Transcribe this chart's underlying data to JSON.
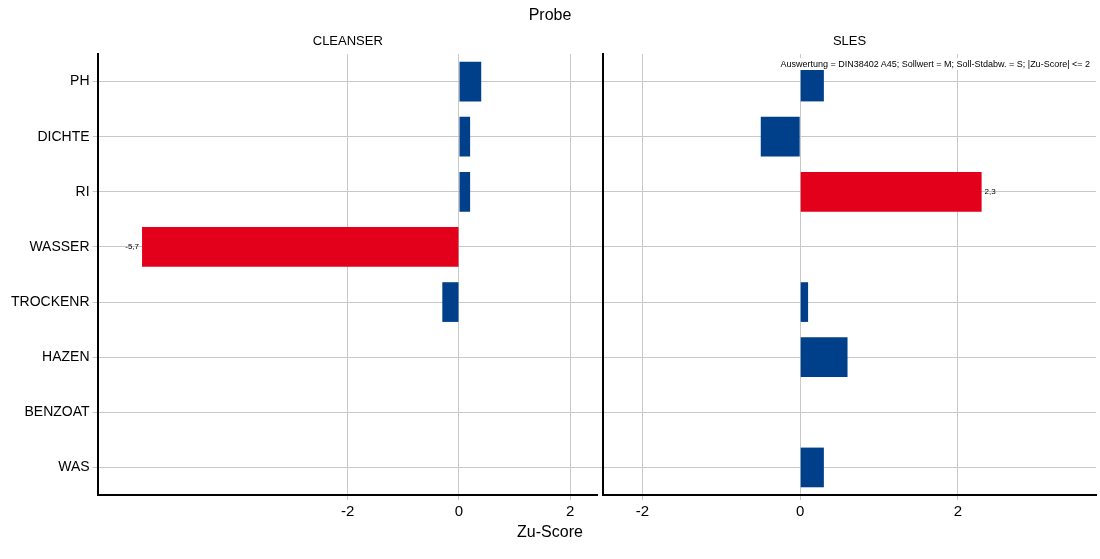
{
  "chart_data": [
    {
      "type": "bar",
      "orientation": "horizontal",
      "title": "Probe",
      "subtitle": "CLEANSER",
      "xlabel": "Zu-Score",
      "categories": [
        "PH",
        "DICHTE",
        "RI",
        "WASSER",
        "TROCKENR",
        "HAZEN",
        "BENZOAT",
        "WAS"
      ],
      "values": [
        0.4,
        0.2,
        0.2,
        -5.7,
        -0.3,
        null,
        0,
        null
      ],
      "colors": [
        "#003f8a",
        "#003f8a",
        "#003f8a",
        "#e2001a",
        "#003f8a",
        "#003f8a",
        "#003f8a",
        "#003f8a"
      ],
      "value_labels": [
        null,
        null,
        null,
        "-5,7",
        null,
        null,
        null,
        null
      ],
      "xlim": [
        -6.5,
        2.5
      ],
      "xticks": [
        -2,
        0,
        2
      ],
      "grid": true,
      "legend": false
    },
    {
      "type": "bar",
      "orientation": "horizontal",
      "subtitle": "SLES",
      "categories": [
        null,
        null,
        null,
        null,
        null,
        null,
        null,
        null
      ],
      "values": [
        0.3,
        -0.5,
        2.3,
        null,
        0.1,
        0.6,
        null,
        0.3
      ],
      "colors": [
        "#003f8a",
        "#003f8a",
        "#e2001a",
        "#003f8a",
        "#003f8a",
        "#003f8a",
        "#003f8a",
        "#003f8a"
      ],
      "value_labels": [
        null,
        null,
        "2,3",
        null,
        null,
        null,
        null,
        null
      ],
      "annotations": [
        "Auswertung = DIN38402 A45; Sollwert = M; Soll-Stdabw. = S; |Zu-Score| <= 2"
      ],
      "xlim": [
        -2.5,
        3.75
      ],
      "xticks": [
        -2,
        0,
        2
      ],
      "grid": true,
      "legend": false,
      "tick_labels": "x"
    }
  ]
}
